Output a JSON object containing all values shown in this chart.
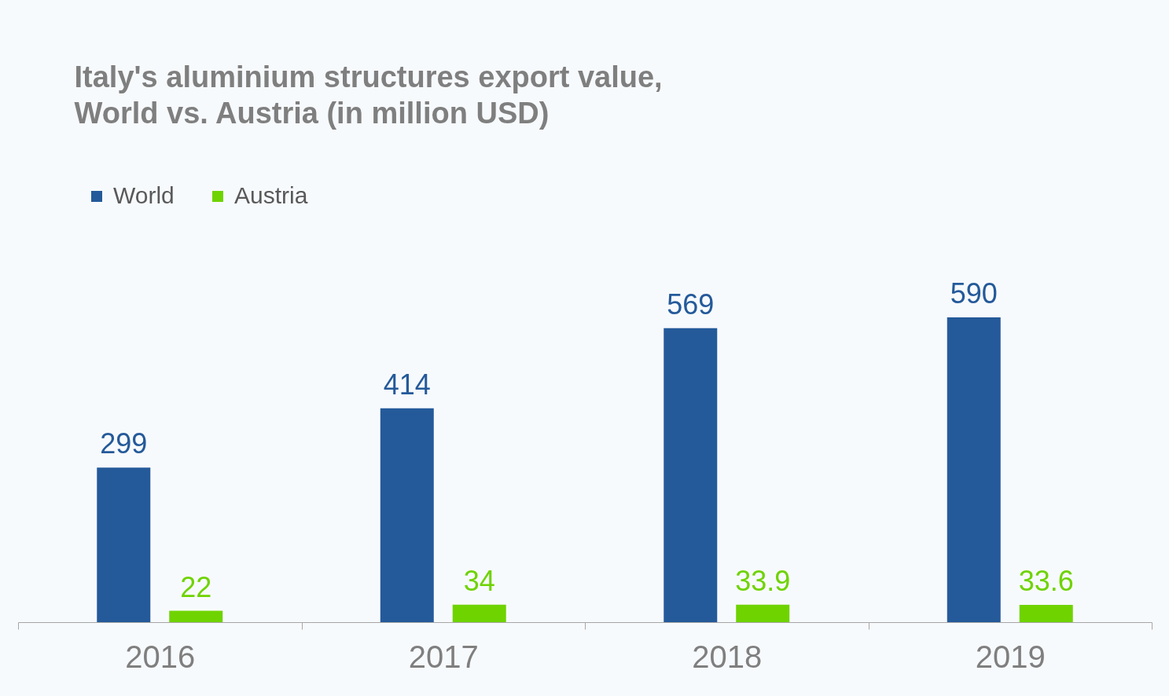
{
  "chart_data": {
    "type": "bar",
    "title": "Italy's aluminium structures export value,\nWorld vs. Austria (in million USD)",
    "categories": [
      "2016",
      "2017",
      "2018",
      "2019"
    ],
    "series": [
      {
        "name": "World",
        "color": "#245a9a",
        "values": [
          299,
          414,
          569,
          590
        ]
      },
      {
        "name": "Austria",
        "color": "#6fd300",
        "values": [
          22,
          34,
          33.9,
          33.6
        ]
      }
    ],
    "data_labels": true,
    "legend": "top left"
  }
}
